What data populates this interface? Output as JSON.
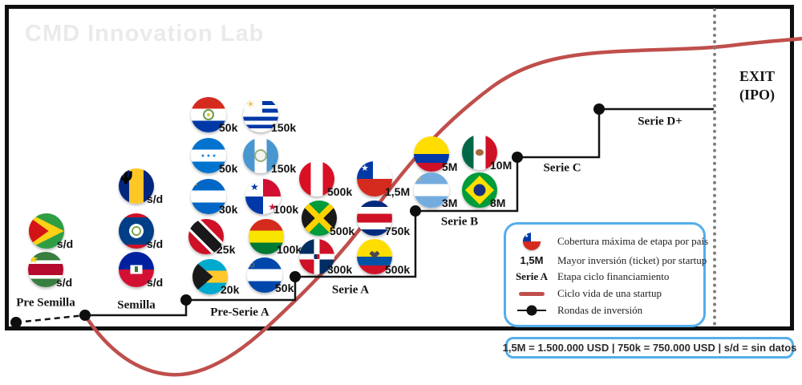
{
  "watermark": "CMD Innovation Lab",
  "exit": {
    "line1": "EXIT",
    "line2": "(IPO)"
  },
  "footnote": "1,5M = 1.500.000 USD | 750k = 750.000 USD  | s/d = sin datos",
  "legend": {
    "items": [
      {
        "icon": "chile-flag-icon",
        "label": "Cobertura máxima de etapa por país"
      },
      {
        "icon": "ticket-value",
        "icon_text": "1,5M",
        "label": "Mayor inversión (ticket) por startup"
      },
      {
        "icon": "stage-text",
        "icon_text": "Serie A",
        "label": "Etapa ciclo financiamiento"
      },
      {
        "icon": "lifecycle-line-icon",
        "label": "Ciclo vida de una startup"
      },
      {
        "icon": "round-marker-icon",
        "label": "Rondas de inversión"
      }
    ]
  },
  "stages": [
    {
      "label": "Pre Semilla",
      "flags": [
        {
          "country": "Guyana",
          "code": "gy",
          "value": "s/d"
        },
        {
          "country": "Suriname",
          "code": "sr",
          "value": "s/d"
        }
      ]
    },
    {
      "label": "Semilla",
      "flags": [
        {
          "country": "Barbados",
          "code": "bb",
          "value": "s/d"
        },
        {
          "country": "Belize",
          "code": "bz",
          "value": "s/d"
        },
        {
          "country": "Haiti",
          "code": "ht",
          "value": "s/d"
        }
      ]
    },
    {
      "label": "Pre-Serie A",
      "flags": [
        {
          "country": "Paraguay",
          "code": "py",
          "value": "50k"
        },
        {
          "country": "Uruguay",
          "code": "uy",
          "value": "150k"
        },
        {
          "country": "Honduras",
          "code": "hn",
          "value": "50k"
        },
        {
          "country": "Guatemala",
          "code": "gt",
          "value": "150k"
        },
        {
          "country": "Nicaragua",
          "code": "ni",
          "value": "30k"
        },
        {
          "country": "Panama",
          "code": "pa",
          "value": "100k"
        },
        {
          "country": "Trinidad y Tobago",
          "code": "tt",
          "value": "25k"
        },
        {
          "country": "Bolivia",
          "code": "bo",
          "value": "100k"
        },
        {
          "country": "Bahamas",
          "code": "bs",
          "value": "20k"
        },
        {
          "country": "El Salvador",
          "code": "sv",
          "value": "50k"
        }
      ]
    },
    {
      "label": "Serie A",
      "flags": [
        {
          "country": "Peru",
          "code": "pe",
          "value": "500k"
        },
        {
          "country": "Chile",
          "code": "cl",
          "value": "1,5M"
        },
        {
          "country": "Jamaica",
          "code": "jm",
          "value": "500k"
        },
        {
          "country": "Costa Rica",
          "code": "cr",
          "value": "750k"
        },
        {
          "country": "Republica Dominicana",
          "code": "do",
          "value": "300k"
        },
        {
          "country": "Ecuador",
          "code": "ec",
          "value": "500k"
        }
      ]
    },
    {
      "label": "Serie B",
      "flags": [
        {
          "country": "Colombia",
          "code": "co",
          "value": "5M"
        },
        {
          "country": "Mexico",
          "code": "mx",
          "value": "10M"
        },
        {
          "country": "Argentina",
          "code": "ar",
          "value": "3M"
        },
        {
          "country": "Brasil",
          "code": "br",
          "value": "8M"
        }
      ]
    },
    {
      "label": "Serie C",
      "flags": []
    },
    {
      "label": "Serie D+",
      "flags": []
    }
  ],
  "colors": {
    "accent_blue": "#53aeea",
    "curve_red": "#bf4f4c",
    "line_black": "#111111",
    "watermark_gray": "#eaeaea"
  }
}
